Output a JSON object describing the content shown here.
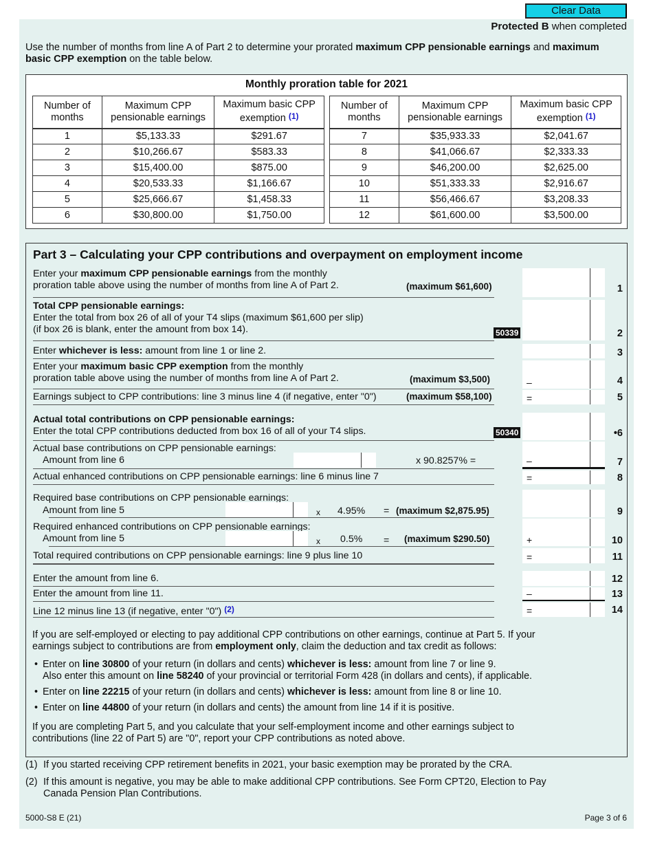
{
  "header": {
    "clear_button": "Clear Data",
    "protected_bold": "Protected B",
    "protected_rest": " when completed"
  },
  "intro": [
    [
      "Use the number of months from line A of Part 2 to determine your prorated ",
      0
    ],
    [
      "maximum CPP pensionable earnings",
      1
    ],
    [
      " and ",
      0
    ],
    [
      "maximum basic CPP exemption",
      1
    ],
    [
      " on the table below.",
      0
    ]
  ],
  "proration_table": {
    "title": "Monthly proration table for 2021",
    "headers": [
      "Number of months",
      "Maximum CPP pensionable earnings",
      "Maximum basic CPP exemption"
    ],
    "footnote_ref": "(1)",
    "left": [
      [
        "1",
        "$5,133.33",
        "$291.67"
      ],
      [
        "2",
        "$10,266.67",
        "$583.33"
      ],
      [
        "3",
        "$15,400.00",
        "$875.00"
      ],
      [
        "4",
        "$20,533.33",
        "$1,166.67"
      ],
      [
        "5",
        "$25,666.67",
        "$1,458.33"
      ],
      [
        "6",
        "$30,800.00",
        "$1,750.00"
      ]
    ],
    "right": [
      [
        "7",
        "$35,933.33",
        "$2,041.67"
      ],
      [
        "8",
        "$41,066.67",
        "$2,333.33"
      ],
      [
        "9",
        "$46,200.00",
        "$2,625.00"
      ],
      [
        "10",
        "$51,333.33",
        "$2,916.67"
      ],
      [
        "11",
        "$56,466.67",
        "$3,208.33"
      ],
      [
        "12",
        "$61,600.00",
        "$3,500.00"
      ]
    ]
  },
  "part3": {
    "title": "Part 3 – Calculating your CPP contributions and overpayment on employment income",
    "l1": [
      [
        "Enter your ",
        0
      ],
      [
        "maximum CPP pensionable earnings",
        1
      ],
      [
        " from the monthly",
        0
      ],
      [
        "\nproration table above using the number of months from line A of Part 2.",
        0
      ]
    ],
    "l1_max": "(maximum $61,600)",
    "l2": [
      [
        "Total CPP pensionable earnings:",
        1
      ],
      [
        "\nEnter the total from box 26 of all of your T4 slips (maximum $61,600 per slip)\n(if box 26 is blank, enter the amount from box 14).",
        0
      ]
    ],
    "l2_code": "50339",
    "l3": [
      [
        "Enter ",
        0
      ],
      [
        "whichever is less:",
        1
      ],
      [
        " amount from line 1 or line 2.",
        0
      ]
    ],
    "l4": [
      [
        "Enter your ",
        0
      ],
      [
        "maximum basic CPP exemption",
        1
      ],
      [
        " from the monthly",
        0
      ],
      [
        "\nproration table above using the number of months from line A of Part 2.",
        0
      ]
    ],
    "l4_max": "(maximum $3,500)",
    "l5": [
      [
        "Earnings subject to CPP contributions: line 3 minus line 4 (if negative, enter \"0\")",
        0
      ]
    ],
    "l5_max": "(maximum $58,100)",
    "l6": [
      [
        "Actual total contributions on CPP pensionable earnings:",
        1
      ],
      [
        "\nEnter the total CPP contributions deducted from box 16 of all of your T4 slips.",
        0
      ]
    ],
    "l6_code": "50340",
    "l7_a": "Actual base contributions on CPP pensionable earnings:",
    "l7_b": "Amount from line 6",
    "l7_rate": "x 90.8257%  =",
    "l8": "Actual enhanced contributions on CPP pensionable earnings: line 6 minus line 7",
    "l9_a": "Required base contributions on CPP pensionable earnings:",
    "l9_b": "Amount from line 5",
    "l9_x": "x",
    "l9_rate": "4.95%",
    "l9_eq": "=",
    "l9_max": "(maximum $2,875.95)",
    "l10_a": "Required enhanced contributions on CPP pensionable earnings:",
    "l10_b": "Amount from line 5",
    "l10_x": "x",
    "l10_rate": "0.5%",
    "l10_eq": "=",
    "l10_max": "(maximum $290.50)",
    "l11": "Total required contributions on CPP pensionable earnings: line 9 plus line 10",
    "l12": "Enter the amount from line 6.",
    "l13": "Enter the amount from line 11.",
    "l14": "Line 12 minus line 13 (if negative, enter \"0\")",
    "l14_ref": "(2)",
    "ops": {
      "minus": "–",
      "equals": "=",
      "plus": "+"
    },
    "line_numbers": [
      "1",
      "2",
      "3",
      "4",
      "5",
      "•6",
      "7",
      "8",
      "9",
      "10",
      "11",
      "12",
      "13",
      "14"
    ],
    "para1": [
      [
        "If you are self-employed or electing to pay additional CPP contributions on other earnings, continue at Part 5. If your\nearnings subject to contributions are from ",
        0
      ],
      [
        "employment only",
        1
      ],
      [
        ", claim the deduction and tax credit as follows:",
        0
      ]
    ],
    "bullets": [
      [
        [
          "Enter on ",
          0
        ],
        [
          "line 30800",
          1
        ],
        [
          " of your return (in dollars and cents) ",
          0
        ],
        [
          "whichever is less:",
          1
        ],
        [
          " amount from line 7 or line 9.\nAlso enter this amount on ",
          0
        ],
        [
          "line 58240",
          1
        ],
        [
          " of your provincial or territorial Form 428 (in dollars and cents), if applicable.",
          0
        ]
      ],
      [
        [
          "Enter on ",
          0
        ],
        [
          "line 22215",
          1
        ],
        [
          " of your return (in dollars and cents) ",
          0
        ],
        [
          "whichever is less:",
          1
        ],
        [
          " amount from line 8 or line 10.",
          0
        ]
      ],
      [
        [
          "Enter on ",
          0
        ],
        [
          "line 44800",
          1
        ],
        [
          " of your return (in dollars and cents) the amount from line 14 if it is positive.",
          0
        ]
      ]
    ],
    "para2": [
      [
        "If you are completing Part 5, and you calculate that your self-employment income and other earnings subject to\ncontributions (line 22 of Part 5) are \"0\", report your CPP contributions as noted above.",
        0
      ]
    ]
  },
  "footnotes": [
    {
      "n": "(1)",
      "t": "If you started receiving CPP retirement benefits in 2021, your basic exemption may be prorated by the CRA."
    },
    {
      "n": "(2)",
      "t": "If this amount is negative, you may be able to make additional CPP contributions. See Form CPT20, Election to Pay\nCanada Pension Plan Contributions."
    }
  ],
  "footer": {
    "form_id": "5000-S8 E (21)",
    "page": "Page 3 of 6"
  }
}
